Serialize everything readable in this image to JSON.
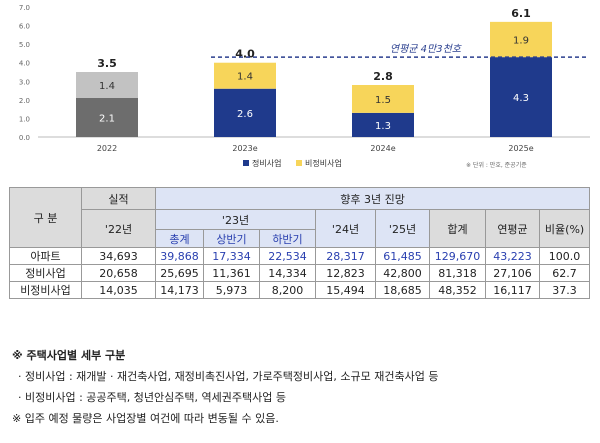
{
  "chart_data": {
    "type": "bar",
    "stacked": true,
    "categories": [
      "2022",
      "2023e",
      "2024e",
      "2025e"
    ],
    "series": [
      {
        "name": "정비사업",
        "values": [
          2.1,
          2.6,
          1.3,
          4.3
        ],
        "colors": [
          "#6d6d6d",
          "#1f3a8c",
          "#1f3a8c",
          "#1f3a8c"
        ]
      },
      {
        "name": "비정비사업",
        "values": [
          1.4,
          1.4,
          1.5,
          1.9
        ],
        "colors": [
          "#c2c2c2",
          "#f7d55a",
          "#f7d55a",
          "#f7d55a"
        ]
      }
    ],
    "totals": [
      "3.5",
      "4.0",
      "2.8",
      "6.1"
    ],
    "segment_labels": [
      [
        "2.1",
        "2.6",
        "1.3",
        "4.3"
      ],
      [
        "1.4",
        "1.4",
        "1.5",
        "1.9"
      ]
    ],
    "yticks": [
      "0.0",
      "1.0",
      "2.0",
      "3.0",
      "4.0",
      "5.0",
      "6.0",
      "7.0"
    ],
    "ylim": [
      0,
      7
    ],
    "reference_line": {
      "value": 4.3,
      "label": "연평균 4만3천호"
    },
    "legend": [
      "정비사업",
      "비정비사업"
    ],
    "legend_position": "bottom",
    "source_note": "※ 단위 : 만호, 준공기준"
  },
  "table": {
    "header": {
      "gubun": "구  분",
      "actual": "실적",
      "forecast": "향후 3년 진망",
      "y22": "'22년",
      "y23": "'23년",
      "total_23": "총계",
      "h1": "상반기",
      "h2": "하반기",
      "y24": "'24년",
      "y25": "'25년",
      "sum": "합계",
      "avg": "연평균",
      "ratio": "비율(%)"
    },
    "rows": [
      {
        "label": "아파트",
        "cells": [
          "34,693",
          "39,868",
          "17,334",
          "22,534",
          "28,317",
          "61,485",
          "129,670",
          "43,223",
          "100.0"
        ]
      },
      {
        "label": "정비사업",
        "cells": [
          "20,658",
          "25,695",
          "11,361",
          "14,334",
          "12,823",
          "42,800",
          "81,318",
          "27,106",
          "62.7"
        ]
      },
      {
        "label": "비정비사업",
        "cells": [
          "14,035",
          "14,173",
          "5,973",
          "8,200",
          "15,494",
          "18,685",
          "48,352",
          "16,117",
          "37.3"
        ]
      }
    ]
  },
  "notes": {
    "title": "※ 주택사업별 세부 구분",
    "line1": "· 정비사업 : 재개발 · 재건축사업, 재정비촉진사업, 가로주택정비사업, 소규모 재건축사업 등",
    "line2": "· 비정비사업 : 공공주택, 청년안심주택, 역세권주택사업 등",
    "line3": "※ 입주 예정 물량은 사업장별 여건에 따라 변동될 수 있음."
  }
}
